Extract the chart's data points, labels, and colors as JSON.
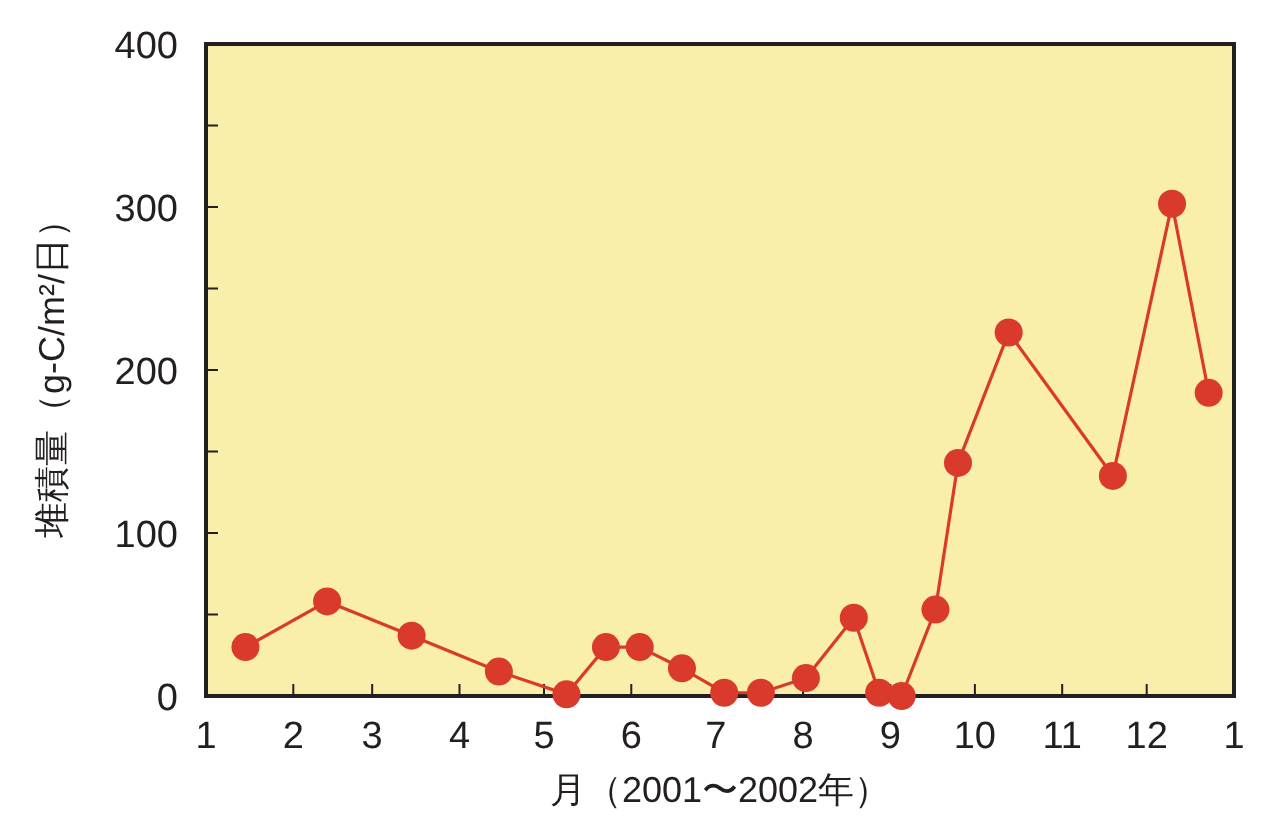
{
  "chart_data": {
    "type": "line",
    "xlabel": "月（2001〜2002年）",
    "ylabel": "堆積量（g-C/m²/日）",
    "marker": "circle",
    "line_style": "solid",
    "grid": false,
    "xlim": [
      "2001-01-01",
      "2002-01-01"
    ],
    "xticks": [
      {
        "value": "2001-01-01",
        "label": "1"
      },
      {
        "value": "2001-02-01",
        "label": "2"
      },
      {
        "value": "2001-03-01",
        "label": "3"
      },
      {
        "value": "2001-04-01",
        "label": "4"
      },
      {
        "value": "2001-05-01",
        "label": "5"
      },
      {
        "value": "2001-06-01",
        "label": "6"
      },
      {
        "value": "2001-07-01",
        "label": "7"
      },
      {
        "value": "2001-08-01",
        "label": "8"
      },
      {
        "value": "2001-09-01",
        "label": "9"
      },
      {
        "value": "2001-10-01",
        "label": "10"
      },
      {
        "value": "2001-11-01",
        "label": "11"
      },
      {
        "value": "2001-12-01",
        "label": "12"
      },
      {
        "value": "2002-01-01",
        "label": "1"
      }
    ],
    "ylim": [
      0,
      400
    ],
    "yticks": [
      0,
      {
        "value": 50,
        "label": null
      },
      100,
      {
        "value": 150,
        "label": null
      },
      200,
      {
        "value": 250,
        "label": null
      },
      300,
      {
        "value": 350,
        "label": null
      },
      400
    ],
    "series": [
      {
        "color": "#d93a2b",
        "x": [
          "2001-01-15",
          "2001-02-13",
          "2001-03-15",
          "2001-04-15",
          "2001-05-09",
          "2001-05-23",
          "2001-06-04",
          "2001-06-19",
          "2001-07-04",
          "2001-07-17",
          "2001-08-02",
          "2001-08-19",
          "2001-08-28",
          "2001-09-05",
          "2001-09-17",
          "2001-09-25",
          "2001-10-13",
          "2001-11-19",
          "2001-12-10",
          "2001-12-23"
        ],
        "values": [
          30,
          58,
          37,
          15,
          1,
          30,
          30,
          17,
          2,
          2,
          11,
          48,
          2,
          0,
          53,
          143,
          223,
          135,
          302,
          186
        ]
      }
    ]
  }
}
